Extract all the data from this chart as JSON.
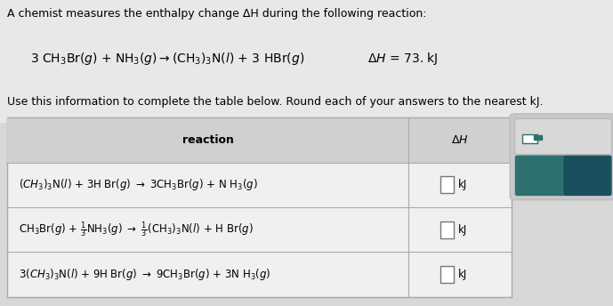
{
  "bg_color": "#d8d8d8",
  "white_bg": "#ffffff",
  "title_text": "A chemist measures the enthalpy change ΔH during the following reaction:",
  "subtitle_text": "Use this information to complete the table below. Round each of your answers to the nearest kJ.",
  "table_header_reaction": "reaction",
  "table_header_dH": "ΔH",
  "table_bg": "#f0f0f0",
  "table_header_bg": "#d0d0d0",
  "teal_color": "#2d7070",
  "teal_dark": "#1a4f5f",
  "border_color": "#aaaaaa",
  "top_area_bg": "#e0e0e0",
  "ui_panel_bg": "#cccccc"
}
